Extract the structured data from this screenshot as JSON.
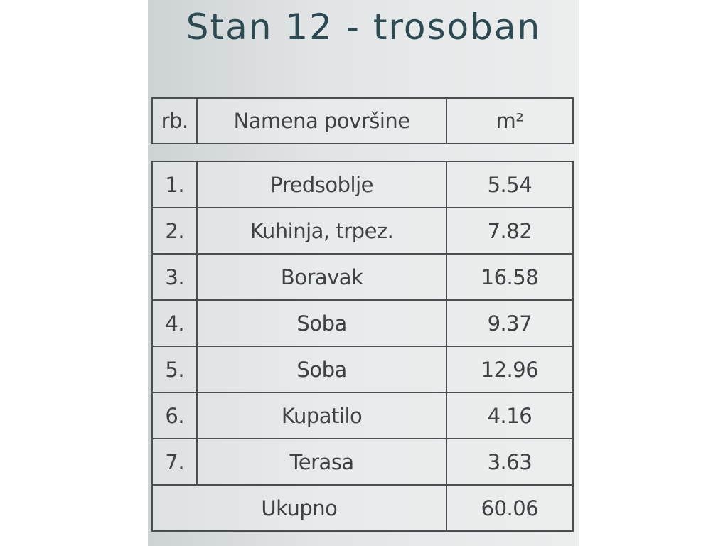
{
  "title": "Stan 12 - trosoban",
  "header": [
    "rb.",
    "Namena površine",
    "m²"
  ],
  "rows": [
    [
      "1.",
      "Predsoblje",
      5.54
    ],
    [
      "2.",
      "Kuhinja, trpez.",
      7.82
    ],
    [
      "3.",
      "Boravak",
      16.58
    ],
    [
      "4.",
      "Soba",
      9.37
    ],
    [
      "5.",
      "Soba",
      12.96
    ],
    [
      "6.",
      "Kupatilo",
      4.16
    ],
    [
      "7.",
      "Terasa",
      3.63
    ]
  ],
  "total": {
    "label": "Ukupno",
    "value": 60.06
  }
}
